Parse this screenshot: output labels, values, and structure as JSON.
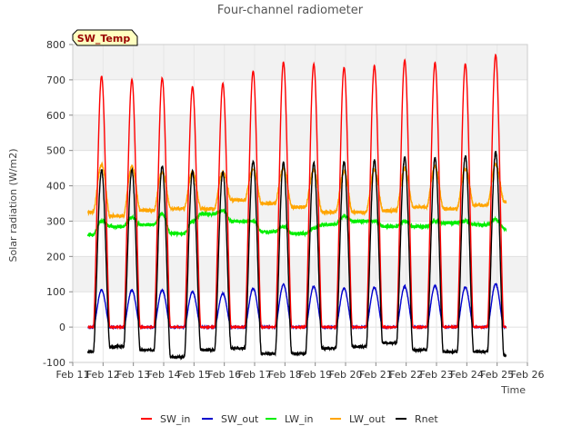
{
  "chart_data": {
    "type": "line",
    "title": "Four-channel radiometer",
    "xlabel": "Time",
    "ylabel": "Solar radiation (W/m2)",
    "ylim": [
      -100,
      800
    ],
    "xlim": [
      11,
      26
    ],
    "y_ticks": [
      -100,
      0,
      100,
      200,
      300,
      400,
      500,
      600,
      700,
      800
    ],
    "x_ticks": [
      11,
      12,
      13,
      14,
      15,
      16,
      17,
      18,
      19,
      20,
      21,
      22,
      23,
      24,
      25,
      26
    ],
    "x_tick_labels": [
      "Feb 11",
      "Feb 12",
      "Feb 13",
      "Feb 14",
      "Feb 15",
      "Feb 16",
      "Feb 17",
      "Feb 18",
      "Feb 19",
      "Feb 20",
      "Feb 21",
      "Feb 22",
      "Feb 23",
      "Feb 24",
      "Feb 25",
      "Feb 26"
    ],
    "legend_position": "bottom",
    "grid": true,
    "annotation": "SW_Temp",
    "daily_peak_x": [
      11.95,
      12.95,
      13.95,
      14.95,
      15.95,
      16.95,
      17.95,
      18.95,
      19.95,
      20.95,
      21.95,
      22.95,
      23.95,
      24.95
    ],
    "series": [
      {
        "name": "SW_in",
        "color": "#ff0000",
        "night": 0,
        "peaks": [
          710,
          700,
          705,
          680,
          690,
          725,
          750,
          745,
          735,
          740,
          755,
          748,
          745,
          770
        ]
      },
      {
        "name": "SW_out",
        "color": "#0000cc",
        "night": 0,
        "peaks": [
          105,
          105,
          105,
          100,
          95,
          110,
          120,
          115,
          110,
          112,
          115,
          117,
          113,
          122
        ]
      },
      {
        "name": "LW_in",
        "color": "#00ee00",
        "night": [
          262,
          285,
          290,
          265,
          320,
          300,
          270,
          265,
          290,
          300,
          285,
          285,
          295,
          290,
          278
        ],
        "peaks": [
          300,
          310,
          320,
          300,
          330,
          300,
          285,
          280,
          315,
          300,
          300,
          300,
          300,
          305
        ]
      },
      {
        "name": "LW_out",
        "color": "#ffa500",
        "night": [
          325,
          315,
          330,
          335,
          335,
          360,
          350,
          340,
          325,
          325,
          330,
          340,
          335,
          345,
          355
        ],
        "peaks": [
          460,
          455,
          440,
          440,
          440,
          450,
          450,
          445,
          440,
          445,
          450,
          455,
          450,
          460
        ]
      },
      {
        "name": "Rnet",
        "color": "#000000",
        "night": [
          -70,
          -55,
          -65,
          -85,
          -65,
          -60,
          -75,
          -75,
          -60,
          -55,
          -45,
          -65,
          -70,
          -70,
          -80
        ],
        "peaks": [
          445,
          445,
          455,
          440,
          440,
          470,
          465,
          465,
          468,
          472,
          480,
          478,
          485,
          495
        ]
      }
    ]
  }
}
